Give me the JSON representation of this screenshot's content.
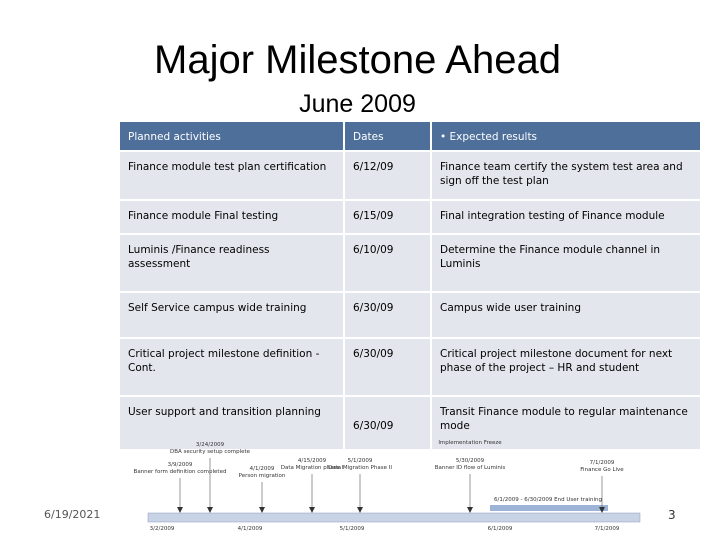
{
  "header": {
    "title": "Major Milestone Ahead",
    "subtitle": "June 2009"
  },
  "table": {
    "columns": [
      "Planned activities",
      "Dates",
      "• Expected results"
    ],
    "rows": [
      [
        "Finance module test plan certification",
        "6/12/09",
        "Finance team certify the system test area and sign off the test plan"
      ],
      [
        "Finance module Final testing",
        "6/15/09",
        "Final integration testing of Finance module"
      ],
      [
        "Luminis /Finance readiness assessment",
        "6/10/09",
        "Determine the Finance module channel in Luminis"
      ],
      [
        "Self Service campus wide training",
        "6/30/09",
        "Campus wide user training"
      ],
      [
        "Critical project milestone definition - Cont.",
        "6/30/09",
        "Critical project milestone document for next phase of the project – HR and student"
      ],
      [
        "User support and transition planning",
        "6/30/09",
        "Transit Finance module to regular maintenance mode"
      ]
    ]
  },
  "timeline": {
    "events": [
      {
        "date": "3/9/2009",
        "label": "Banner form definition completed"
      },
      {
        "date": "3/24/2009",
        "label": "DBA security setup complete"
      },
      {
        "date": "4/1/2009",
        "label": "Person migration"
      },
      {
        "date": "4/15/2009",
        "label": "Data Migration phase I"
      },
      {
        "date": "5/1/2009",
        "label": "Data Migration Phase II"
      },
      {
        "date": "5/30/2009",
        "label": "Banner ID flow of Luminis"
      },
      {
        "date": "7/1/2009",
        "label": "Finance Go Live"
      }
    ],
    "freeze": "Implementation Freeze",
    "training": "6/1/2009 - 6/30/2009 End User training",
    "axis": [
      "3/2/2009",
      "4/1/2009",
      "5/1/2009",
      "6/1/2009",
      "7/1/2009"
    ]
  },
  "footer": {
    "date": "6/19/2021",
    "page": "3"
  }
}
